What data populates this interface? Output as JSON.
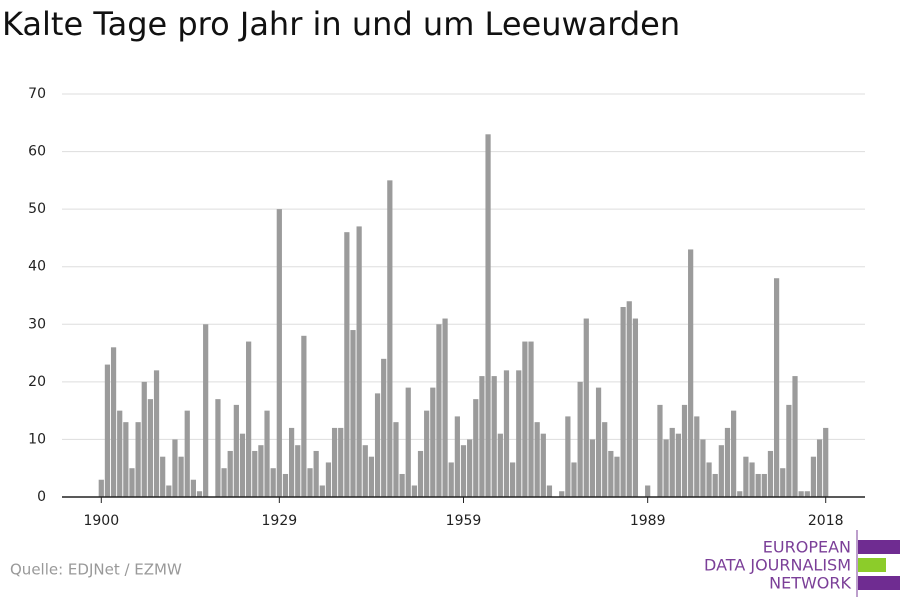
{
  "chart_data": {
    "type": "bar",
    "title": "Kalte Tage pro Jahr in und um Leeuwarden",
    "source": "Quelle: EDJNet / EZMW",
    "logo": [
      "EUROPEAN",
      "DATA JOURNALISM",
      "NETWORK"
    ],
    "color": "#9b9b9b",
    "x": [
      1900,
      1901,
      1902,
      1903,
      1904,
      1905,
      1906,
      1907,
      1908,
      1909,
      1910,
      1911,
      1912,
      1913,
      1914,
      1915,
      1916,
      1917,
      1918,
      1919,
      1920,
      1921,
      1922,
      1923,
      1924,
      1925,
      1926,
      1927,
      1928,
      1929,
      1930,
      1931,
      1932,
      1933,
      1934,
      1935,
      1936,
      1937,
      1938,
      1939,
      1940,
      1941,
      1942,
      1943,
      1944,
      1945,
      1946,
      1947,
      1948,
      1949,
      1950,
      1951,
      1952,
      1953,
      1954,
      1955,
      1956,
      1957,
      1958,
      1959,
      1960,
      1961,
      1962,
      1963,
      1964,
      1965,
      1966,
      1967,
      1968,
      1969,
      1970,
      1971,
      1972,
      1973,
      1974,
      1975,
      1976,
      1977,
      1978,
      1979,
      1980,
      1981,
      1982,
      1983,
      1984,
      1985,
      1986,
      1987,
      1988,
      1989,
      1990,
      1991,
      1992,
      1993,
      1994,
      1995,
      1996,
      1997,
      1998,
      1999,
      2000,
      2001,
      2002,
      2003,
      2004,
      2005,
      2006,
      2007,
      2008,
      2009,
      2010,
      2011,
      2012,
      2013,
      2014,
      2015,
      2016,
      2017,
      2018
    ],
    "values": [
      3,
      23,
      26,
      15,
      13,
      5,
      13,
      20,
      17,
      22,
      7,
      2,
      10,
      7,
      15,
      3,
      1,
      30,
      0,
      17,
      5,
      8,
      16,
      11,
      27,
      8,
      9,
      15,
      5,
      50,
      4,
      12,
      9,
      28,
      5,
      8,
      2,
      6,
      12,
      12,
      46,
      29,
      47,
      9,
      7,
      18,
      24,
      55,
      13,
      4,
      19,
      2,
      8,
      15,
      19,
      30,
      31,
      6,
      14,
      9,
      10,
      17,
      21,
      63,
      21,
      11,
      22,
      6,
      22,
      27,
      27,
      13,
      11,
      2,
      0,
      1,
      14,
      6,
      20,
      31,
      10,
      19,
      13,
      8,
      7,
      33,
      34,
      31,
      0,
      2,
      0,
      16,
      10,
      12,
      11,
      16,
      43,
      14,
      10,
      6,
      4,
      9,
      12,
      15,
      1,
      7,
      6,
      4,
      4,
      8,
      38,
      5,
      16,
      21,
      1,
      1,
      7,
      10,
      12
    ],
    "xlim": [
      1893.6,
      2024.4
    ],
    "xticks": [
      1900,
      1929,
      1959,
      1989,
      2018
    ],
    "ylim": [
      0,
      70
    ],
    "yticks": [
      0,
      10,
      20,
      30,
      40,
      50,
      60,
      70
    ],
    "grid": true
  }
}
